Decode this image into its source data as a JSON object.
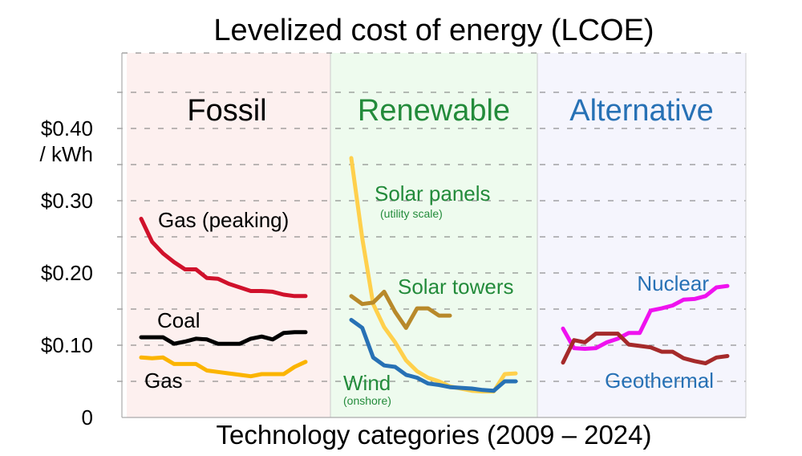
{
  "chart_data": {
    "type": "line",
    "title": "Levelized cost of energy (LCOE)",
    "xlabel": "Technology categories (2009 – 2024)",
    "ylabel": "",
    "ylim": [
      0,
      0.5
    ],
    "y_ticks": [
      {
        "value": 0,
        "label": "0"
      },
      {
        "value": 0.1,
        "label": "$0.10"
      },
      {
        "value": 0.2,
        "label": "$0.20"
      },
      {
        "value": 0.3,
        "label": "$0.30"
      },
      {
        "value": 0.4,
        "label": "$0.40"
      }
    ],
    "y_unit_label": "/ kWh",
    "grid": "dashed horizontal",
    "x_range": [
      2009,
      2024
    ],
    "panels": [
      {
        "title": "Fossil",
        "title_color": "#000000",
        "background": "#fdf0ef",
        "series": [
          {
            "name": "Gas (peaking)",
            "color": "#d0112b",
            "label_color": "#000000",
            "x": [
              2009,
              2010,
              2011,
              2012,
              2013,
              2014,
              2015,
              2016,
              2017,
              2018,
              2019,
              2020,
              2021,
              2022,
              2023,
              2024
            ],
            "y": [
              0.275,
              0.243,
              0.227,
              0.215,
              0.205,
              0.205,
              0.193,
              0.192,
              0.185,
              0.18,
              0.175,
              0.175,
              0.174,
              0.17,
              0.168,
              0.168
            ]
          },
          {
            "name": "Coal",
            "color": "#000000",
            "label_color": "#000000",
            "x": [
              2009,
              2010,
              2011,
              2012,
              2013,
              2014,
              2015,
              2016,
              2017,
              2018,
              2019,
              2020,
              2021,
              2022,
              2023,
              2024
            ],
            "y": [
              0.111,
              0.111,
              0.111,
              0.102,
              0.105,
              0.109,
              0.108,
              0.102,
              0.102,
              0.102,
              0.109,
              0.112,
              0.108,
              0.117,
              0.118,
              0.118
            ]
          },
          {
            "name": "Gas",
            "color": "#fbb400",
            "label_color": "#000000",
            "x": [
              2009,
              2010,
              2011,
              2012,
              2013,
              2014,
              2015,
              2016,
              2017,
              2018,
              2019,
              2020,
              2021,
              2022,
              2023,
              2024
            ],
            "y": [
              0.083,
              0.082,
              0.083,
              0.074,
              0.074,
              0.074,
              0.065,
              0.063,
              0.061,
              0.059,
              0.057,
              0.06,
              0.06,
              0.06,
              0.07,
              0.077
            ]
          }
        ]
      },
      {
        "title": "Renewable",
        "title_color": "#238b3b",
        "background": "#eefbee",
        "series": [
          {
            "name": "Solar panels",
            "sublabel": "(utility scale)",
            "color": "#ffd04c",
            "label_color": "#238b3b",
            "x": [
              2009,
              2010,
              2011,
              2012,
              2013,
              2014,
              2015,
              2016,
              2017,
              2018,
              2019,
              2020,
              2021,
              2022,
              2023,
              2024
            ],
            "y": [
              0.359,
              0.248,
              0.157,
              0.125,
              0.104,
              0.079,
              0.064,
              0.055,
              0.05,
              0.043,
              0.04,
              0.037,
              0.036,
              0.036,
              0.06,
              0.061
            ]
          },
          {
            "name": "Solar towers",
            "color": "#b8892a",
            "label_color": "#238b3b",
            "x": [
              2009,
              2010,
              2011,
              2012,
              2013,
              2014,
              2015,
              2016,
              2017,
              2018
            ],
            "y": [
              0.168,
              0.157,
              0.159,
              0.174,
              0.146,
              0.124,
              0.151,
              0.151,
              0.141,
              0.141
            ]
          },
          {
            "name": "Wind",
            "sublabel": "(onshore)",
            "color": "#2771b5",
            "label_color": "#238b3b",
            "x": [
              2009,
              2010,
              2011,
              2012,
              2013,
              2014,
              2015,
              2016,
              2017,
              2018,
              2019,
              2020,
              2021,
              2022,
              2023,
              2024
            ],
            "y": [
              0.135,
              0.124,
              0.083,
              0.072,
              0.07,
              0.059,
              0.055,
              0.047,
              0.045,
              0.042,
              0.041,
              0.04,
              0.038,
              0.037,
              0.05,
              0.05
            ]
          }
        ]
      },
      {
        "title": "Alternative",
        "title_color": "#2771b5",
        "background": "#f5f5fd",
        "series": [
          {
            "name": "Nuclear",
            "color": "#ef12ef",
            "label_color": "#2771b5",
            "x": [
              2009,
              2010,
              2011,
              2012,
              2013,
              2014,
              2015,
              2016,
              2017,
              2018,
              2019,
              2020,
              2021,
              2022,
              2023,
              2024
            ],
            "y": [
              0.123,
              0.096,
              0.095,
              0.096,
              0.104,
              0.109,
              0.117,
              0.117,
              0.148,
              0.151,
              0.155,
              0.163,
              0.164,
              0.168,
              0.18,
              0.182
            ]
          },
          {
            "name": "Geothermal",
            "color": "#a52a2a",
            "label_color": "#2771b5",
            "x": [
              2009,
              2010,
              2011,
              2012,
              2013,
              2014,
              2015,
              2016,
              2017,
              2018,
              2019,
              2020,
              2021,
              2022,
              2023,
              2024
            ],
            "y": [
              0.076,
              0.107,
              0.104,
              0.116,
              0.116,
              0.116,
              0.101,
              0.099,
              0.097,
              0.091,
              0.091,
              0.082,
              0.078,
              0.075,
              0.083,
              0.085
            ]
          }
        ]
      }
    ]
  }
}
